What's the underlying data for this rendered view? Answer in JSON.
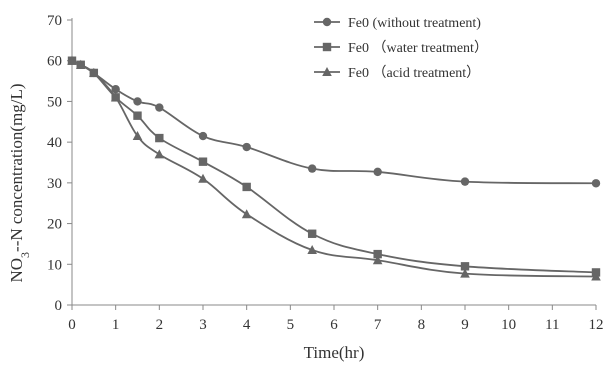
{
  "chart_data": {
    "type": "line",
    "title": "",
    "xlabel": "Time(hr)",
    "ylabel": "NO3--N concentration(mg/L)",
    "xlim": [
      0,
      12
    ],
    "ylim": [
      0,
      70
    ],
    "x_ticks": [
      "0",
      "1",
      "2",
      "3",
      "4",
      "5",
      "6",
      "7",
      "8",
      "9",
      "10",
      "11",
      "12"
    ],
    "y_ticks": [
      "0",
      "10",
      "20",
      "30",
      "40",
      "50",
      "60",
      "70"
    ],
    "grid": false,
    "legend_position": "top-right",
    "series": [
      {
        "name": "Fe0 (without treatment)",
        "marker": "circle",
        "color": "#666666",
        "x": [
          0,
          0.2,
          0.5,
          1,
          1.5,
          2,
          3,
          4,
          5.5,
          7,
          9,
          12
        ],
        "values": [
          60,
          59,
          57,
          53,
          50,
          48.5,
          41.5,
          38.8,
          33.5,
          32.7,
          30.3,
          29.9
        ]
      },
      {
        "name": "Fe0 （water treatment）",
        "marker": "square",
        "color": "#666666",
        "x": [
          0,
          0.2,
          0.5,
          1,
          1.5,
          2,
          3,
          4,
          5.5,
          7,
          9,
          12
        ],
        "values": [
          60,
          59,
          57,
          51,
          46.5,
          41,
          35.2,
          29,
          17.5,
          12.5,
          9.5,
          8
        ]
      },
      {
        "name": "Fe0 （acid treatment）",
        "marker": "triangle",
        "color": "#666666",
        "x": [
          0,
          0.2,
          0.5,
          1,
          1.5,
          2,
          3,
          4,
          5.5,
          7,
          9,
          12
        ],
        "values": [
          60,
          59,
          57,
          51,
          41.5,
          37,
          31,
          22.3,
          13.5,
          11,
          7.7,
          7
        ]
      }
    ]
  }
}
